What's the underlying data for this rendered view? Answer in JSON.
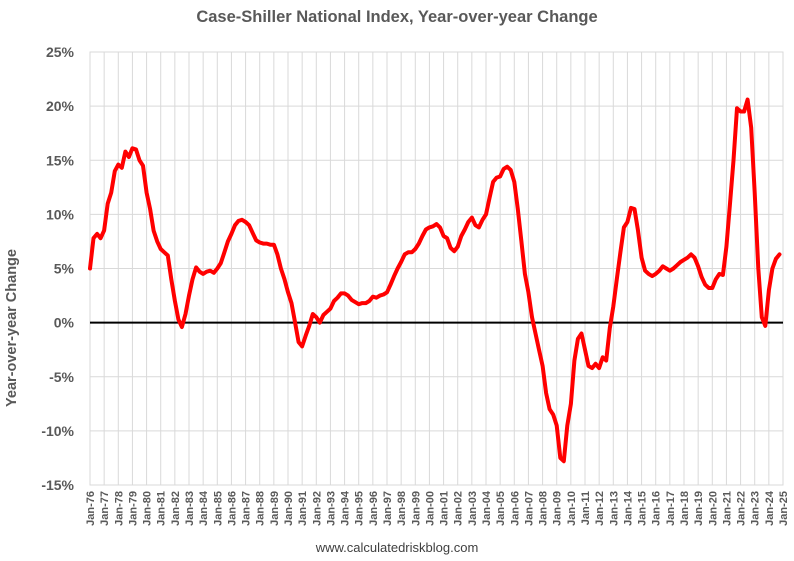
{
  "chart_data": {
    "type": "line",
    "title": "Case-Shiller National Index, Year-over-year Change",
    "ylabel": "Year-over-year Change",
    "xlabel": "",
    "source": "www.calculatedriskblog.com",
    "ylim": [
      -15,
      25
    ],
    "ytick_labels": [
      "-15%",
      "-10%",
      "-5%",
      "0%",
      "5%",
      "10%",
      "15%",
      "20%",
      "25%"
    ],
    "xlim": [
      1976,
      2025
    ],
    "xtick_labels": [
      "Jan-76",
      "Jan-77",
      "Jan-78",
      "Jan-79",
      "Jan-80",
      "Jan-81",
      "Jan-82",
      "Jan-83",
      "Jan-84",
      "Jan-85",
      "Jan-86",
      "Jan-87",
      "Jan-88",
      "Jan-89",
      "Jan-90",
      "Jan-91",
      "Jan-92",
      "Jan-93",
      "Jan-94",
      "Jan-95",
      "Jan-96",
      "Jan-97",
      "Jan-98",
      "Jan-99",
      "Jan-00",
      "Jan-01",
      "Jan-02",
      "Jan-03",
      "Jan-04",
      "Jan-05",
      "Jan-06",
      "Jan-07",
      "Jan-08",
      "Jan-09",
      "Jan-10",
      "Jan-11",
      "Jan-12",
      "Jan-13",
      "Jan-14",
      "Jan-15",
      "Jan-16",
      "Jan-17",
      "Jan-18",
      "Jan-19",
      "Jan-20",
      "Jan-21",
      "Jan-22",
      "Jan-23",
      "Jan-24",
      "Jan-25"
    ],
    "grid": true,
    "line_color": "#ff0000",
    "series": [
      {
        "values": [
          [
            1976.0,
            5.0
          ],
          [
            1976.25,
            7.8
          ],
          [
            1976.5,
            8.2
          ],
          [
            1976.75,
            7.8
          ],
          [
            1977.0,
            8.5
          ],
          [
            1977.25,
            11.0
          ],
          [
            1977.5,
            12.0
          ],
          [
            1977.75,
            14.0
          ],
          [
            1978.0,
            14.6
          ],
          [
            1978.25,
            14.3
          ],
          [
            1978.5,
            15.8
          ],
          [
            1978.75,
            15.3
          ],
          [
            1979.0,
            16.1
          ],
          [
            1979.25,
            16.0
          ],
          [
            1979.5,
            15.0
          ],
          [
            1979.75,
            14.5
          ],
          [
            1980.0,
            12.0
          ],
          [
            1980.25,
            10.5
          ],
          [
            1980.5,
            8.5
          ],
          [
            1980.75,
            7.5
          ],
          [
            1981.0,
            6.8
          ],
          [
            1981.25,
            6.5
          ],
          [
            1981.5,
            6.2
          ],
          [
            1981.75,
            4.0
          ],
          [
            1982.0,
            2.0
          ],
          [
            1982.25,
            0.3
          ],
          [
            1982.5,
            -0.4
          ],
          [
            1982.75,
            0.8
          ],
          [
            1983.0,
            2.5
          ],
          [
            1983.25,
            4.0
          ],
          [
            1983.5,
            5.1
          ],
          [
            1983.75,
            4.7
          ],
          [
            1984.0,
            4.5
          ],
          [
            1984.25,
            4.7
          ],
          [
            1984.5,
            4.8
          ],
          [
            1984.75,
            4.6
          ],
          [
            1985.0,
            5.0
          ],
          [
            1985.25,
            5.5
          ],
          [
            1985.5,
            6.5
          ],
          [
            1985.75,
            7.5
          ],
          [
            1986.0,
            8.2
          ],
          [
            1986.25,
            9.0
          ],
          [
            1986.5,
            9.4
          ],
          [
            1986.75,
            9.5
          ],
          [
            1987.0,
            9.3
          ],
          [
            1987.25,
            9.0
          ],
          [
            1987.5,
            8.3
          ],
          [
            1987.75,
            7.6
          ],
          [
            1988.0,
            7.4
          ],
          [
            1988.25,
            7.3
          ],
          [
            1988.5,
            7.3
          ],
          [
            1988.75,
            7.2
          ],
          [
            1989.0,
            7.2
          ],
          [
            1989.25,
            6.3
          ],
          [
            1989.5,
            5.0
          ],
          [
            1989.75,
            4.0
          ],
          [
            1990.0,
            2.8
          ],
          [
            1990.25,
            1.8
          ],
          [
            1990.5,
            0.0
          ],
          [
            1990.75,
            -1.8
          ],
          [
            1991.0,
            -2.2
          ],
          [
            1991.25,
            -1.2
          ],
          [
            1991.5,
            -0.3
          ],
          [
            1991.75,
            0.8
          ],
          [
            1992.0,
            0.5
          ],
          [
            1992.25,
            0.0
          ],
          [
            1992.5,
            0.7
          ],
          [
            1992.75,
            1.0
          ],
          [
            1993.0,
            1.3
          ],
          [
            1993.25,
            2.0
          ],
          [
            1993.5,
            2.3
          ],
          [
            1993.75,
            2.7
          ],
          [
            1994.0,
            2.7
          ],
          [
            1994.25,
            2.5
          ],
          [
            1994.5,
            2.1
          ],
          [
            1994.75,
            1.9
          ],
          [
            1995.0,
            1.7
          ],
          [
            1995.25,
            1.8
          ],
          [
            1995.5,
            1.8
          ],
          [
            1995.75,
            2.0
          ],
          [
            1996.0,
            2.4
          ],
          [
            1996.25,
            2.3
          ],
          [
            1996.5,
            2.5
          ],
          [
            1996.75,
            2.6
          ],
          [
            1997.0,
            2.8
          ],
          [
            1997.25,
            3.5
          ],
          [
            1997.5,
            4.3
          ],
          [
            1997.75,
            5.0
          ],
          [
            1998.0,
            5.6
          ],
          [
            1998.25,
            6.3
          ],
          [
            1998.5,
            6.5
          ],
          [
            1998.75,
            6.5
          ],
          [
            1999.0,
            6.8
          ],
          [
            1999.25,
            7.3
          ],
          [
            1999.5,
            8.0
          ],
          [
            1999.75,
            8.6
          ],
          [
            2000.0,
            8.8
          ],
          [
            2000.25,
            8.9
          ],
          [
            2000.5,
            9.1
          ],
          [
            2000.75,
            8.8
          ],
          [
            2001.0,
            8.0
          ],
          [
            2001.25,
            7.8
          ],
          [
            2001.5,
            6.9
          ],
          [
            2001.75,
            6.6
          ],
          [
            2002.0,
            7.0
          ],
          [
            2002.25,
            8.0
          ],
          [
            2002.5,
            8.6
          ],
          [
            2002.75,
            9.3
          ],
          [
            2003.0,
            9.7
          ],
          [
            2003.25,
            9.0
          ],
          [
            2003.5,
            8.8
          ],
          [
            2003.75,
            9.5
          ],
          [
            2004.0,
            10.0
          ],
          [
            2004.25,
            11.5
          ],
          [
            2004.5,
            13.0
          ],
          [
            2004.75,
            13.4
          ],
          [
            2005.0,
            13.5
          ],
          [
            2005.25,
            14.2
          ],
          [
            2005.5,
            14.4
          ],
          [
            2005.75,
            14.1
          ],
          [
            2006.0,
            13.0
          ],
          [
            2006.25,
            10.5
          ],
          [
            2006.5,
            7.5
          ],
          [
            2006.75,
            4.5
          ],
          [
            2007.0,
            2.8
          ],
          [
            2007.25,
            0.5
          ],
          [
            2007.5,
            -1.0
          ],
          [
            2007.75,
            -2.5
          ],
          [
            2008.0,
            -4.0
          ],
          [
            2008.25,
            -6.5
          ],
          [
            2008.5,
            -8.0
          ],
          [
            2008.75,
            -8.5
          ],
          [
            2009.0,
            -9.5
          ],
          [
            2009.25,
            -12.5
          ],
          [
            2009.5,
            -12.8
          ],
          [
            2009.75,
            -9.5
          ],
          [
            2010.0,
            -7.5
          ],
          [
            2010.25,
            -3.5
          ],
          [
            2010.5,
            -1.5
          ],
          [
            2010.75,
            -1.0
          ],
          [
            2011.0,
            -2.5
          ],
          [
            2011.25,
            -4.0
          ],
          [
            2011.5,
            -4.2
          ],
          [
            2011.75,
            -3.8
          ],
          [
            2012.0,
            -4.2
          ],
          [
            2012.25,
            -3.2
          ],
          [
            2012.5,
            -3.5
          ],
          [
            2012.75,
            -0.5
          ],
          [
            2013.0,
            1.5
          ],
          [
            2013.25,
            4.0
          ],
          [
            2013.5,
            6.5
          ],
          [
            2013.75,
            8.8
          ],
          [
            2014.0,
            9.3
          ],
          [
            2014.25,
            10.6
          ],
          [
            2014.5,
            10.5
          ],
          [
            2014.75,
            8.5
          ],
          [
            2015.0,
            6.0
          ],
          [
            2015.25,
            4.8
          ],
          [
            2015.5,
            4.5
          ],
          [
            2015.75,
            4.3
          ],
          [
            2016.0,
            4.5
          ],
          [
            2016.25,
            4.8
          ],
          [
            2016.5,
            5.2
          ],
          [
            2016.75,
            5.0
          ],
          [
            2017.0,
            4.8
          ],
          [
            2017.25,
            5.0
          ],
          [
            2017.5,
            5.3
          ],
          [
            2017.75,
            5.6
          ],
          [
            2018.0,
            5.8
          ],
          [
            2018.25,
            6.0
          ],
          [
            2018.5,
            6.3
          ],
          [
            2018.75,
            6.0
          ],
          [
            2019.0,
            5.2
          ],
          [
            2019.25,
            4.2
          ],
          [
            2019.5,
            3.5
          ],
          [
            2019.75,
            3.2
          ],
          [
            2020.0,
            3.2
          ],
          [
            2020.25,
            4.0
          ],
          [
            2020.5,
            4.5
          ],
          [
            2020.75,
            4.4
          ],
          [
            2021.0,
            7.0
          ],
          [
            2021.25,
            11.0
          ],
          [
            2021.5,
            15.0
          ],
          [
            2021.75,
            19.8
          ],
          [
            2022.0,
            19.5
          ],
          [
            2022.25,
            19.5
          ],
          [
            2022.5,
            20.6
          ],
          [
            2022.75,
            18.0
          ],
          [
            2023.0,
            12.0
          ],
          [
            2023.25,
            5.0
          ],
          [
            2023.5,
            0.5
          ],
          [
            2023.75,
            -0.3
          ],
          [
            2024.0,
            3.0
          ],
          [
            2024.25,
            5.0
          ],
          [
            2024.5,
            5.9
          ],
          [
            2024.75,
            6.3
          ]
        ]
      }
    ]
  }
}
